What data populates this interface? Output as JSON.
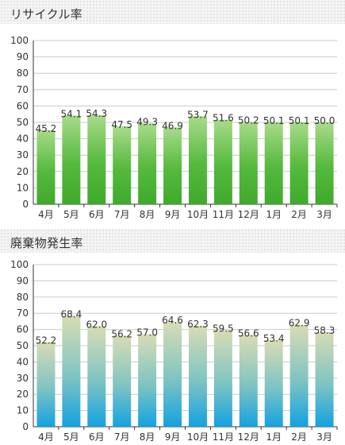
{
  "chart_data": [
    {
      "type": "bar",
      "title": "リサイクル率",
      "categories": [
        "4月",
        "5月",
        "6月",
        "7月",
        "8月",
        "9月",
        "10月",
        "11月",
        "12月",
        "1月",
        "2月",
        "3月"
      ],
      "values": [
        45.2,
        54.1,
        54.3,
        47.5,
        49.3,
        46.9,
        53.7,
        51.6,
        50.2,
        50.1,
        50.1,
        50.0
      ],
      "value_labels": [
        "45.2",
        "54.1",
        "54.3",
        "47.5",
        "49.3",
        "46.9",
        "53.7",
        "51.6",
        "50.2",
        "50.1",
        "50.1",
        "50.0"
      ],
      "ylim": [
        0,
        100
      ],
      "yticks": [
        0,
        10,
        20,
        30,
        40,
        50,
        60,
        70,
        80,
        90,
        100
      ],
      "grid": true,
      "colors": {
        "top": "#a8db8a",
        "mid": "#55b93d",
        "bottom": "#3faa2c"
      }
    },
    {
      "type": "bar",
      "title": "廃棄物発生率",
      "categories": [
        "4月",
        "5月",
        "6月",
        "7月",
        "8月",
        "9月",
        "10月",
        "11月",
        "12月",
        "1月",
        "2月",
        "3月"
      ],
      "values": [
        52.2,
        68.4,
        62.0,
        56.2,
        57.0,
        64.6,
        62.3,
        59.5,
        56.6,
        53.4,
        62.9,
        58.3
      ],
      "value_labels": [
        "52.2",
        "68.4",
        "62.0",
        "56.2",
        "57.0",
        "64.6",
        "62.3",
        "59.5",
        "56.6",
        "53.4",
        "62.9",
        "58.3"
      ],
      "ylim": [
        0,
        100
      ],
      "yticks": [
        0,
        10,
        20,
        30,
        40,
        50,
        60,
        70,
        80,
        90,
        100
      ],
      "grid": true,
      "colors": {
        "top": "#d8dcb4",
        "mid": "#7ec4c2",
        "bottom": "#13a2e0"
      }
    }
  ]
}
